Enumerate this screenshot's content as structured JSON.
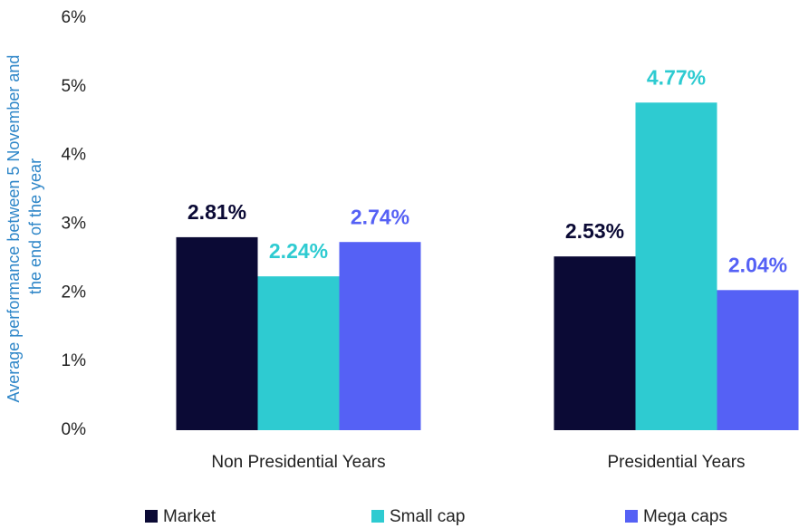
{
  "chart_data": {
    "type": "bar",
    "y_label": [
      "Average performance between 5 November and",
      "the end of the year"
    ],
    "categories": [
      "Non Presidential Years",
      "Presidential Years"
    ],
    "series": [
      {
        "name": "Market",
        "color": "#0b0a35",
        "values": [
          2.81,
          2.53
        ],
        "value_labels": [
          "2.81%",
          "2.53%"
        ]
      },
      {
        "name": "Small cap",
        "color": "#2ecbd1",
        "values": [
          2.24,
          4.77
        ],
        "value_labels": [
          "2.24%",
          "4.77%"
        ]
      },
      {
        "name": "Mega caps",
        "color": "#5561f5",
        "values": [
          2.74,
          2.04
        ],
        "value_labels": [
          "2.74%",
          "2.04%"
        ]
      }
    ],
    "ylim": [
      0,
      6
    ],
    "yticks": [
      {
        "value": 0,
        "label": "0%"
      },
      {
        "value": 1,
        "label": "1%"
      },
      {
        "value": 2,
        "label": "2%"
      },
      {
        "value": 3,
        "label": "3%"
      },
      {
        "value": 4,
        "label": "4%"
      },
      {
        "value": 5,
        "label": "5%"
      },
      {
        "value": 6,
        "label": "6%"
      }
    ],
    "grid": false,
    "legend": "bottom"
  }
}
